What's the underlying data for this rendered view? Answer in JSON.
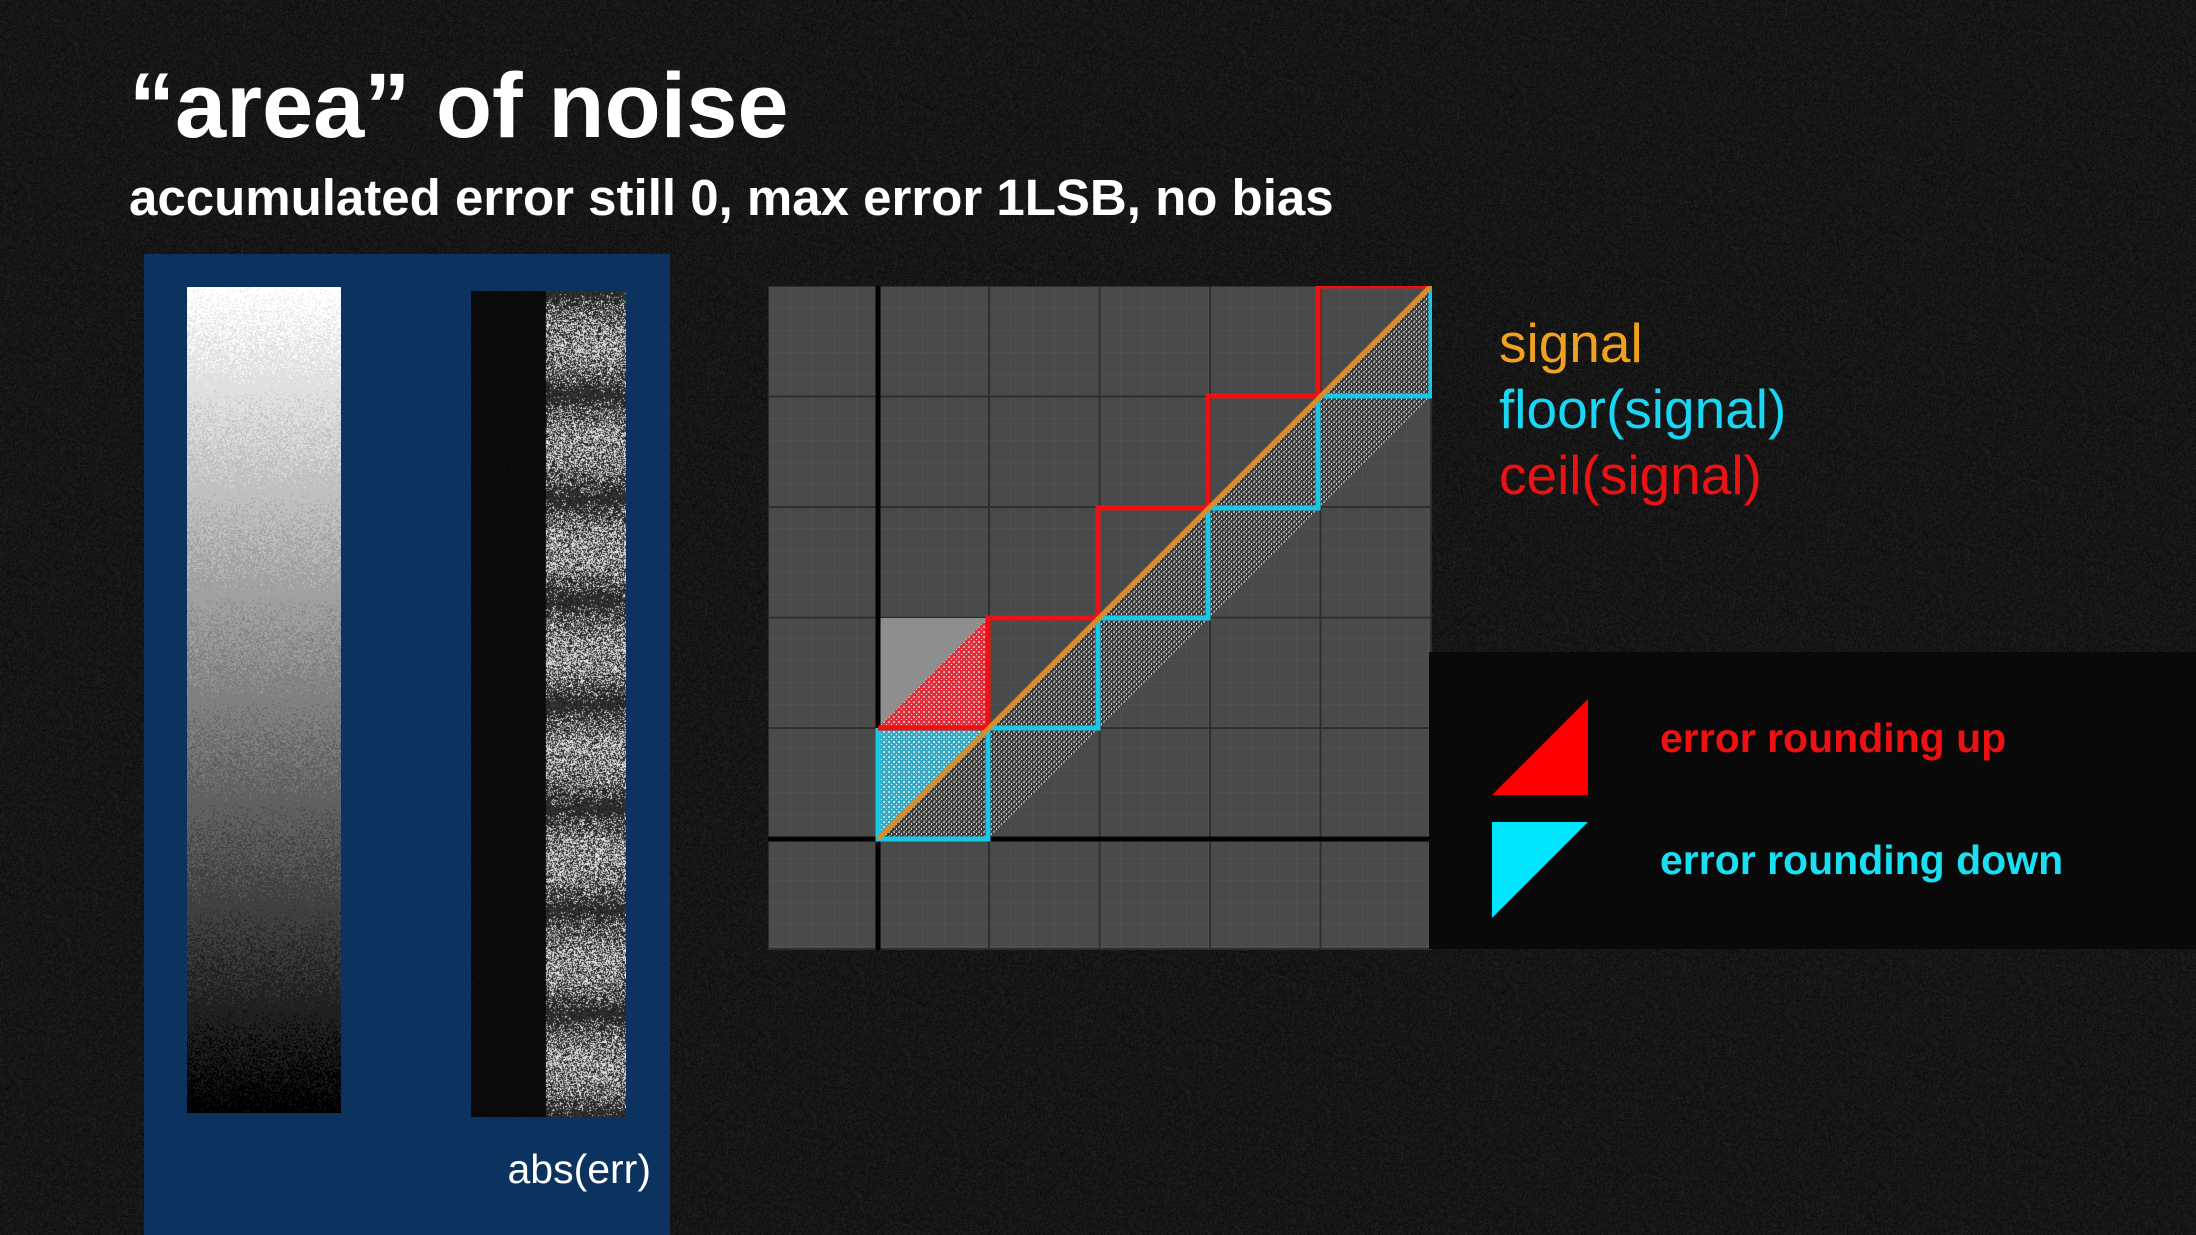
{
  "slide": {
    "title": "“area” of noise",
    "subtitle": "accumulated error still 0, max error 1LSB, no bias",
    "panel_label": "abs(err)",
    "legend": {
      "signal": "signal",
      "floor": "floor(signal)",
      "ceil": "ceil(signal)"
    },
    "error_legend": {
      "up": "error rounding up",
      "down": "error rounding down"
    },
    "colors": {
      "signal": "#f0a21e",
      "floor": "#19d6f2",
      "ceil": "#ee1111",
      "panel": "#0c3360",
      "grid_bg": "#4a4a4a"
    }
  }
}
